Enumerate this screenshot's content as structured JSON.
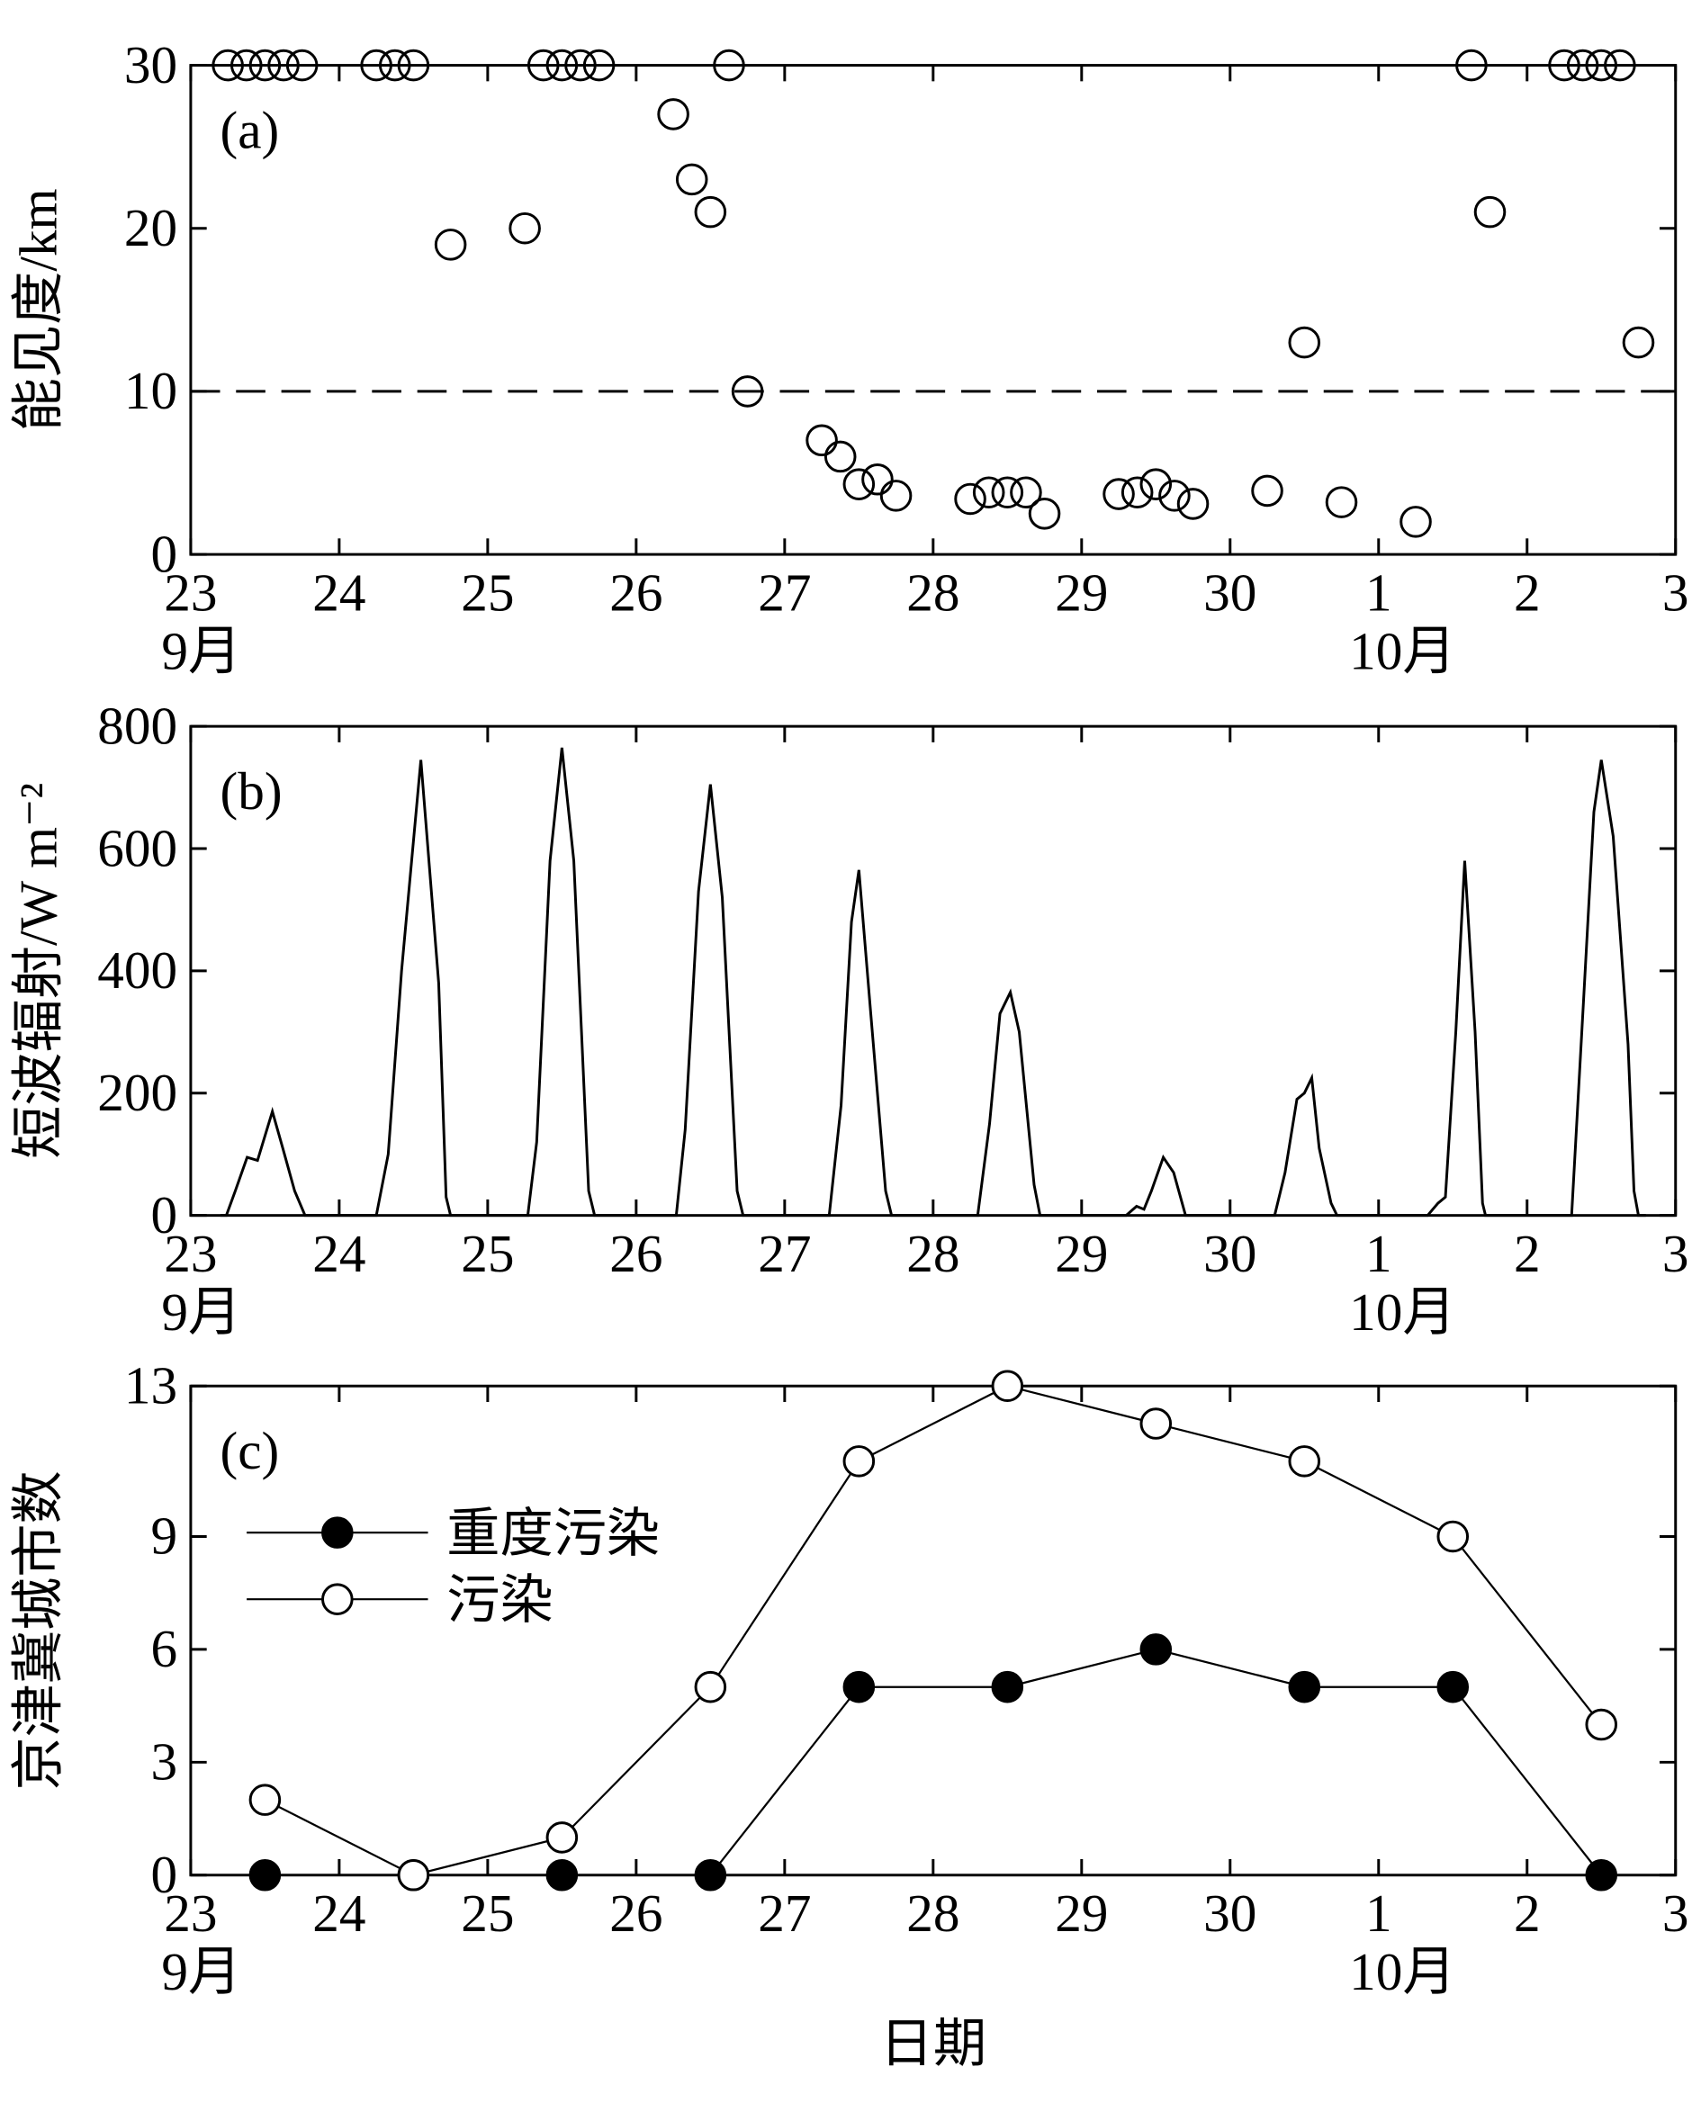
{
  "chart_data": [
    {
      "type": "scatter",
      "panel_label": "(a)",
      "ylabel": "能见度/km",
      "color": "#000000",
      "x": [
        0.25,
        0.375,
        0.5,
        0.625,
        0.75,
        1.25,
        1.375,
        1.5,
        1.75,
        2.25,
        2.375,
        2.5,
        2.625,
        2.75,
        3.25,
        3.375,
        3.5,
        3.625,
        3.75,
        4.25,
        4.375,
        4.5,
        4.625,
        4.75,
        5.25,
        5.375,
        5.5,
        5.625,
        5.75,
        6.25,
        6.375,
        6.5,
        6.625,
        6.75,
        7.25,
        7.5,
        7.75,
        8.25,
        8.625,
        8.75,
        9.25,
        9.375,
        9.5,
        9.625,
        9.75
      ],
      "values": [
        30,
        30,
        30,
        30,
        30,
        30,
        30,
        30,
        19,
        20,
        30,
        30,
        30,
        30,
        27,
        23,
        21,
        30,
        10,
        7,
        6,
        4.3,
        4.6,
        3.6,
        3.4,
        3.8,
        3.8,
        3.8,
        2.5,
        3.7,
        3.8,
        4.3,
        3.6,
        3.1,
        3.9,
        13,
        3.2,
        2.0,
        30,
        21,
        30,
        30,
        30,
        30,
        13
      ],
      "reference_line": 10,
      "xlim": [
        0,
        10
      ],
      "xticks": [
        {
          "value": 0,
          "label": "23"
        },
        {
          "value": 1,
          "label": "24"
        },
        {
          "value": 2,
          "label": "25"
        },
        {
          "value": 3,
          "label": "26"
        },
        {
          "value": 4,
          "label": "27"
        },
        {
          "value": 5,
          "label": "28"
        },
        {
          "value": 6,
          "label": "29"
        },
        {
          "value": 7,
          "label": "30"
        },
        {
          "value": 8,
          "label": "1"
        },
        {
          "value": 9,
          "label": "2"
        },
        {
          "value": 10,
          "label": "3"
        }
      ],
      "month_labels": [
        {
          "value": 0,
          "label": "9月"
        },
        {
          "value": 8,
          "label": "10月"
        }
      ],
      "ylim": [
        0,
        30
      ],
      "yticks": [
        0,
        10,
        20,
        30
      ]
    },
    {
      "type": "line",
      "panel_label": "(b)",
      "ylabel": "短波辐射/W m⁻²",
      "color": "#000000",
      "x": [
        0.2,
        0.24,
        0.3,
        0.38,
        0.45,
        0.55,
        0.62,
        0.7,
        0.77,
        1.25,
        1.33,
        1.42,
        1.55,
        1.67,
        1.72,
        1.75,
        2.27,
        2.33,
        2.42,
        2.5,
        2.58,
        2.68,
        2.72,
        3.27,
        3.33,
        3.42,
        3.5,
        3.58,
        3.68,
        3.72,
        4.3,
        4.38,
        4.45,
        4.5,
        4.58,
        4.68,
        4.72,
        5.3,
        5.38,
        5.45,
        5.52,
        5.58,
        5.68,
        5.72,
        6.3,
        6.37,
        6.42,
        6.47,
        6.55,
        6.62,
        6.7,
        7.3,
        7.37,
        7.45,
        7.5,
        7.55,
        7.6,
        7.68,
        7.72,
        8.33,
        8.4,
        8.45,
        8.52,
        8.58,
        8.65,
        8.7,
        8.72,
        9.3,
        9.38,
        9.45,
        9.5,
        9.58,
        9.68,
        9.72,
        9.75,
        9.8
      ],
      "values": [
        0,
        0,
        40,
        95,
        90,
        170,
        110,
        40,
        0,
        0,
        100,
        400,
        745,
        380,
        30,
        0,
        0,
        120,
        580,
        765,
        580,
        40,
        0,
        0,
        140,
        530,
        705,
        520,
        40,
        0,
        0,
        180,
        480,
        565,
        330,
        40,
        0,
        0,
        150,
        330,
        365,
        300,
        50,
        0,
        0,
        15,
        10,
        40,
        95,
        70,
        0,
        0,
        70,
        190,
        200,
        225,
        110,
        20,
        0,
        0,
        20,
        30,
        300,
        580,
        300,
        20,
        0,
        0,
        350,
        660,
        745,
        620,
        280,
        40,
        0,
        0
      ],
      "xlim": [
        0,
        10
      ],
      "xticks": [
        {
          "value": 0,
          "label": "23"
        },
        {
          "value": 1,
          "label": "24"
        },
        {
          "value": 2,
          "label": "25"
        },
        {
          "value": 3,
          "label": "26"
        },
        {
          "value": 4,
          "label": "27"
        },
        {
          "value": 5,
          "label": "28"
        },
        {
          "value": 6,
          "label": "29"
        },
        {
          "value": 7,
          "label": "30"
        },
        {
          "value": 8,
          "label": "1"
        },
        {
          "value": 9,
          "label": "2"
        },
        {
          "value": 10,
          "label": "3"
        }
      ],
      "month_labels": [
        {
          "value": 0,
          "label": "9月"
        },
        {
          "value": 8,
          "label": "10月"
        }
      ],
      "ylim": [
        0,
        800
      ],
      "yticks": [
        0,
        200,
        400,
        600,
        800
      ]
    },
    {
      "type": "line",
      "panel_label": "(c)",
      "ylabel": "京津冀城市数",
      "xlabel": "日期",
      "legend": "upper left",
      "x": [
        0.5,
        1.5,
        2.5,
        3.5,
        4.5,
        5.5,
        6.5,
        7.5,
        8.5,
        9.5
      ],
      "series": [
        {
          "name": "重度污染",
          "color": "#000000",
          "marker": "filled",
          "values": [
            0,
            0,
            0,
            0,
            5,
            5,
            6,
            5,
            5,
            0
          ]
        },
        {
          "name": "污染",
          "color": "#000000",
          "marker": "open",
          "values": [
            2,
            0,
            1,
            5,
            11,
            13,
            12,
            11,
            9,
            4
          ]
        }
      ],
      "xlim": [
        0,
        10
      ],
      "xticks": [
        {
          "value": 0,
          "label": "23"
        },
        {
          "value": 1,
          "label": "24"
        },
        {
          "value": 2,
          "label": "25"
        },
        {
          "value": 3,
          "label": "26"
        },
        {
          "value": 4,
          "label": "27"
        },
        {
          "value": 5,
          "label": "28"
        },
        {
          "value": 6,
          "label": "29"
        },
        {
          "value": 7,
          "label": "30"
        },
        {
          "value": 8,
          "label": "1"
        },
        {
          "value": 9,
          "label": "2"
        },
        {
          "value": 10,
          "label": "3"
        }
      ],
      "month_labels": [
        {
          "value": 0,
          "label": "9月"
        },
        {
          "value": 8,
          "label": "10月"
        }
      ],
      "ylim": [
        0,
        13
      ],
      "yticks": [
        0,
        3,
        6,
        9,
        13
      ]
    }
  ]
}
